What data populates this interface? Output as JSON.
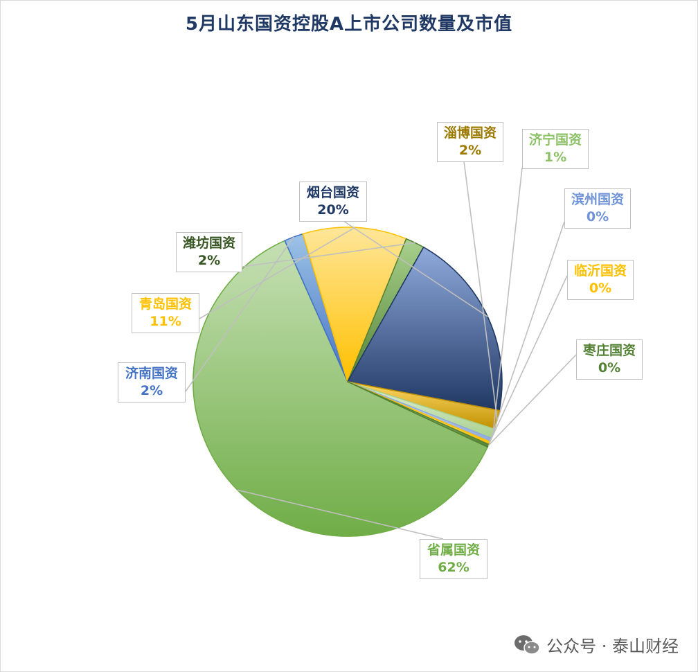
{
  "title": "5月山东国资控股A上市公司数量及市值",
  "watermark": {
    "text": "公众号 · 泰山财经",
    "icon": "wechat-icon"
  },
  "chart_data": {
    "type": "pie",
    "title": "5月山东国资控股A上市公司数量及市值",
    "slices": [
      {
        "name": "省属国资",
        "value": 62,
        "label": "62%",
        "color": "#70ad47",
        "light": "#c5e0b4",
        "text_color": "#70ad47"
      },
      {
        "name": "济南国资",
        "value": 2,
        "label": "2%",
        "color": "#4472c4",
        "light": "#9dc3e6",
        "text_color": "#4472c4"
      },
      {
        "name": "青岛国资",
        "value": 11,
        "label": "11%",
        "color": "#ffc000",
        "light": "#ffe699",
        "text_color": "#ffc000"
      },
      {
        "name": "潍坊国资",
        "value": 2,
        "label": "2%",
        "color": "#548235",
        "light": "#a9d18e",
        "text_color": "#375623"
      },
      {
        "name": "烟台国资",
        "value": 20,
        "label": "20%",
        "color": "#203864",
        "light": "#8faadc",
        "text_color": "#1f3864"
      },
      {
        "name": "淄博国资",
        "value": 2,
        "label": "2%",
        "color": "#bf9000",
        "light": "#ffd966",
        "text_color": "#9c7a00"
      },
      {
        "name": "济宁国资",
        "value": 1,
        "label": "1%",
        "color": "#a9d18e",
        "light": "#e2f0d9",
        "text_color": "#8cc168"
      },
      {
        "name": "滨州国资",
        "value": 0.4,
        "label": "0%",
        "color": "#8faadc",
        "light": "#dae3f3",
        "text_color": "#6f93d6"
      },
      {
        "name": "临沂国资",
        "value": 0.3,
        "label": "0%",
        "color": "#ffc000",
        "light": "#fff2cc",
        "text_color": "#ffc000"
      },
      {
        "name": "枣庄国资",
        "value": 0.3,
        "label": "0%",
        "color": "#548235",
        "light": "#a9d18e",
        "text_color": "#548235"
      }
    ]
  }
}
